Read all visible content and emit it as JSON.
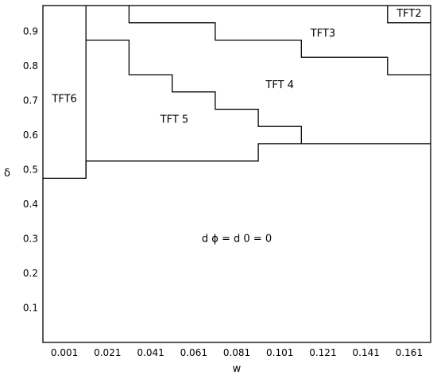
{
  "chart_data": {
    "type": "region-map",
    "xlabel": "w",
    "ylabel": "δ",
    "x_ticks": [
      "0.001",
      "0.021",
      "0.041",
      "0.061",
      "0.081",
      "0.101",
      "0.121",
      "0.141",
      "0.161"
    ],
    "y_ticks": [
      "0.1",
      "0.2",
      "0.3",
      "0.4",
      "0.5",
      "0.6",
      "0.7",
      "0.8",
      "0.9"
    ],
    "xlim": [
      -0.009,
      0.171
    ],
    "ylim": [
      0.0,
      0.975
    ],
    "boundaries": [
      {
        "name": "TFT6-left",
        "points": [
          [
            -0.009,
            0.475
          ],
          [
            0.011,
            0.475
          ],
          [
            0.011,
            0.975
          ]
        ]
      },
      {
        "name": "TFT5-lower",
        "points": [
          [
            0.011,
            0.475
          ],
          [
            0.011,
            0.525
          ],
          [
            0.091,
            0.525
          ],
          [
            0.091,
            0.575
          ],
          [
            0.171,
            0.575
          ]
        ]
      },
      {
        "name": "TFT5-upper",
        "points": [
          [
            0.011,
            0.875
          ],
          [
            0.031,
            0.875
          ],
          [
            0.031,
            0.775
          ],
          [
            0.051,
            0.775
          ],
          [
            0.051,
            0.725
          ],
          [
            0.071,
            0.725
          ],
          [
            0.071,
            0.675
          ],
          [
            0.091,
            0.675
          ],
          [
            0.091,
            0.625
          ],
          [
            0.111,
            0.625
          ],
          [
            0.111,
            0.575
          ]
        ]
      },
      {
        "name": "TFT3-lower",
        "points": [
          [
            0.031,
            0.975
          ],
          [
            0.031,
            0.925
          ],
          [
            0.071,
            0.925
          ],
          [
            0.071,
            0.875
          ],
          [
            0.111,
            0.875
          ],
          [
            0.111,
            0.825
          ],
          [
            0.151,
            0.825
          ],
          [
            0.151,
            0.775
          ],
          [
            0.171,
            0.775
          ]
        ]
      },
      {
        "name": "TFT2-box",
        "points": [
          [
            0.151,
            0.975
          ],
          [
            0.151,
            0.925
          ],
          [
            0.171,
            0.925
          ]
        ]
      }
    ],
    "region_labels": [
      {
        "text": "TFT2",
        "x": 0.161,
        "y": 0.952
      },
      {
        "text": "TFT3",
        "x": 0.121,
        "y": 0.895
      },
      {
        "text": "TFT 4",
        "x": 0.101,
        "y": 0.745
      },
      {
        "text": "TFT 5",
        "x": 0.052,
        "y": 0.645
      },
      {
        "text": "TFT6",
        "x": 0.001,
        "y": 0.705
      },
      {
        "text": "d ϕ = d 0 = 0",
        "x": 0.081,
        "y": 0.3
      }
    ]
  }
}
